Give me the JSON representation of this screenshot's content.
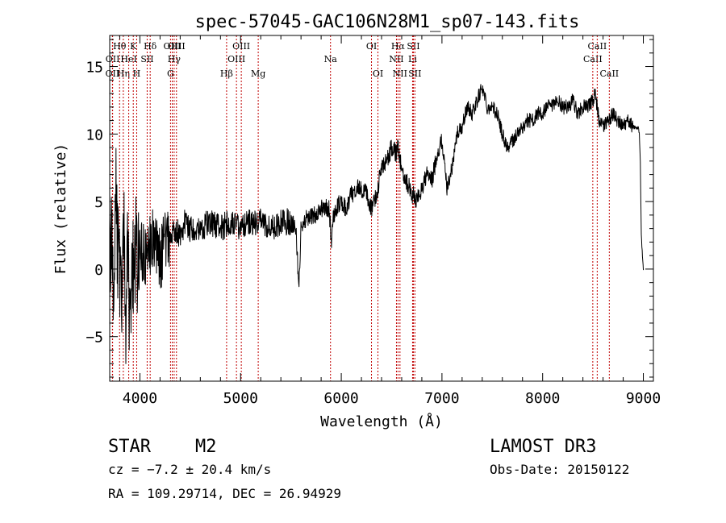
{
  "chart_data": {
    "type": "line",
    "title": "spec-57045-GAC106N28M1_sp07-143.fits",
    "xlabel": "Wavelength (Å)",
    "ylabel": "Flux (relative)",
    "xlim": [
      3700,
      9100
    ],
    "ylim": [
      -8.3,
      17.3
    ],
    "xticks": [
      4000,
      5000,
      6000,
      7000,
      8000,
      9000
    ],
    "yticks": [
      -5,
      0,
      5,
      10,
      15
    ],
    "line_color": "#000000",
    "marker_color": "#c00000",
    "series": [
      {
        "name": "flux",
        "x": [
          3700,
          3720,
          3740,
          3760,
          3780,
          3800,
          3820,
          3840,
          3860,
          3880,
          3900,
          3920,
          3940,
          3960,
          3980,
          4000,
          4050,
          4100,
          4150,
          4200,
          4250,
          4300,
          4350,
          4400,
          4450,
          4500,
          4600,
          4700,
          4800,
          4900,
          5000,
          5100,
          5200,
          5300,
          5400,
          5500,
          5550,
          5580,
          5600,
          5620,
          5700,
          5750,
          5800,
          5850,
          5880,
          5900,
          5920,
          5950,
          6000,
          6050,
          6100,
          6150,
          6200,
          6250,
          6300,
          6350,
          6400,
          6450,
          6500,
          6550,
          6563,
          6580,
          6620,
          6650,
          6700,
          6720,
          6750,
          6800,
          6850,
          6900,
          6950,
          7000,
          7050,
          7100,
          7150,
          7200,
          7250,
          7300,
          7350,
          7400,
          7450,
          7500,
          7550,
          7600,
          7650,
          7700,
          7750,
          7800,
          7850,
          7900,
          7950,
          8000,
          8050,
          8100,
          8150,
          8200,
          8250,
          8300,
          8350,
          8400,
          8450,
          8500,
          8520,
          8542,
          8560,
          8600,
          8650,
          8700,
          8750,
          8800,
          8850,
          8900,
          8950,
          8960,
          8970,
          8980,
          9000,
          9005
        ],
        "y": [
          0.5,
          2.0,
          -1.0,
          6.0,
          1.0,
          -0.5,
          -2.5,
          3.5,
          -3.0,
          2.0,
          -4.5,
          1.5,
          -1.5,
          2.5,
          0.0,
          2.0,
          0.5,
          1.5,
          2.5,
          0.5,
          2.0,
          2.0,
          3.0,
          2.5,
          3.5,
          3.0,
          3.0,
          3.5,
          3.0,
          3.5,
          3.0,
          3.5,
          3.5,
          3.0,
          3.5,
          3.5,
          3.0,
          -1.5,
          3.0,
          3.5,
          4.0,
          4.0,
          4.5,
          4.5,
          4.5,
          2.0,
          4.0,
          4.5,
          5.0,
          4.5,
          5.5,
          6.0,
          6.0,
          5.5,
          4.5,
          5.5,
          7.5,
          8.0,
          9.0,
          8.5,
          9.0,
          8.0,
          7.0,
          6.5,
          5.5,
          5.5,
          5.0,
          6.0,
          7.0,
          6.5,
          8.5,
          9.5,
          6.0,
          7.5,
          10.0,
          10.5,
          12.0,
          11.5,
          12.5,
          13.5,
          12.0,
          12.0,
          11.5,
          10.0,
          9.0,
          9.5,
          10.0,
          10.5,
          11.0,
          11.0,
          11.5,
          11.5,
          12.0,
          12.0,
          12.5,
          12.0,
          12.0,
          12.5,
          11.5,
          12.0,
          12.0,
          12.5,
          13.0,
          12.0,
          11.0,
          10.5,
          11.0,
          11.5,
          11.0,
          10.5,
          11.0,
          10.5,
          10.5,
          10.0,
          8.0,
          2.5,
          0.0,
          0.0
        ]
      }
    ],
    "line_markers": [
      {
        "name": "OII",
        "wavelength": 3727,
        "row": 3
      },
      {
        "name": "OII",
        "wavelength": 3729,
        "row": 2
      },
      {
        "name": "Hθ",
        "wavelength": 3798,
        "row": 1
      },
      {
        "name": "Hη",
        "wavelength": 3835,
        "row": 3
      },
      {
        "name": "HeI",
        "wavelength": 3889,
        "row": 2
      },
      {
        "name": "K",
        "wavelength": 3934,
        "row": 1
      },
      {
        "name": "H",
        "wavelength": 3968,
        "row": 3
      },
      {
        "name": "SII",
        "wavelength": 4072,
        "row": 2
      },
      {
        "name": "Hδ",
        "wavelength": 4102,
        "row": 1
      },
      {
        "name": "G",
        "wavelength": 4304,
        "row": 3
      },
      {
        "name": "OIII",
        "wavelength": 4321,
        "row": 1
      },
      {
        "name": "Hγ",
        "wavelength": 4340,
        "row": 2
      },
      {
        "name": "OIII",
        "wavelength": 4363,
        "row": 1
      },
      {
        "name": "Hβ",
        "wavelength": 4861,
        "row": 3
      },
      {
        "name": "OIII",
        "wavelength": 4959,
        "row": 2
      },
      {
        "name": "OIII",
        "wavelength": 5007,
        "row": 1
      },
      {
        "name": "Mg",
        "wavelength": 5175,
        "row": 3
      },
      {
        "name": "Na",
        "wavelength": 5893,
        "row": 2
      },
      {
        "name": "OI",
        "wavelength": 6300,
        "row": 1
      },
      {
        "name": "OI",
        "wavelength": 6364,
        "row": 3
      },
      {
        "name": "NII",
        "wavelength": 6548,
        "row": 2
      },
      {
        "name": "Hα",
        "wavelength": 6563,
        "row": 1
      },
      {
        "name": "NII",
        "wavelength": 6583,
        "row": 3
      },
      {
        "name": "Li",
        "wavelength": 6708,
        "row": 2
      },
      {
        "name": "SII",
        "wavelength": 6716,
        "row": 1
      },
      {
        "name": "SII",
        "wavelength": 6731,
        "row": 3
      },
      {
        "name": "CaII",
        "wavelength": 8498,
        "row": 2
      },
      {
        "name": "CaII",
        "wavelength": 8542,
        "row": 1
      },
      {
        "name": "CaII",
        "wavelength": 8662,
        "row": 3
      }
    ]
  },
  "info": {
    "object_class": "STAR",
    "subclass": "M2",
    "survey": "LAMOST DR3",
    "redshift": "cz = −7.2 ± 20.4 km/s",
    "obs_date": "Obs-Date: 20150122",
    "coords": "RA = 109.29714, DEC =  26.94929"
  }
}
